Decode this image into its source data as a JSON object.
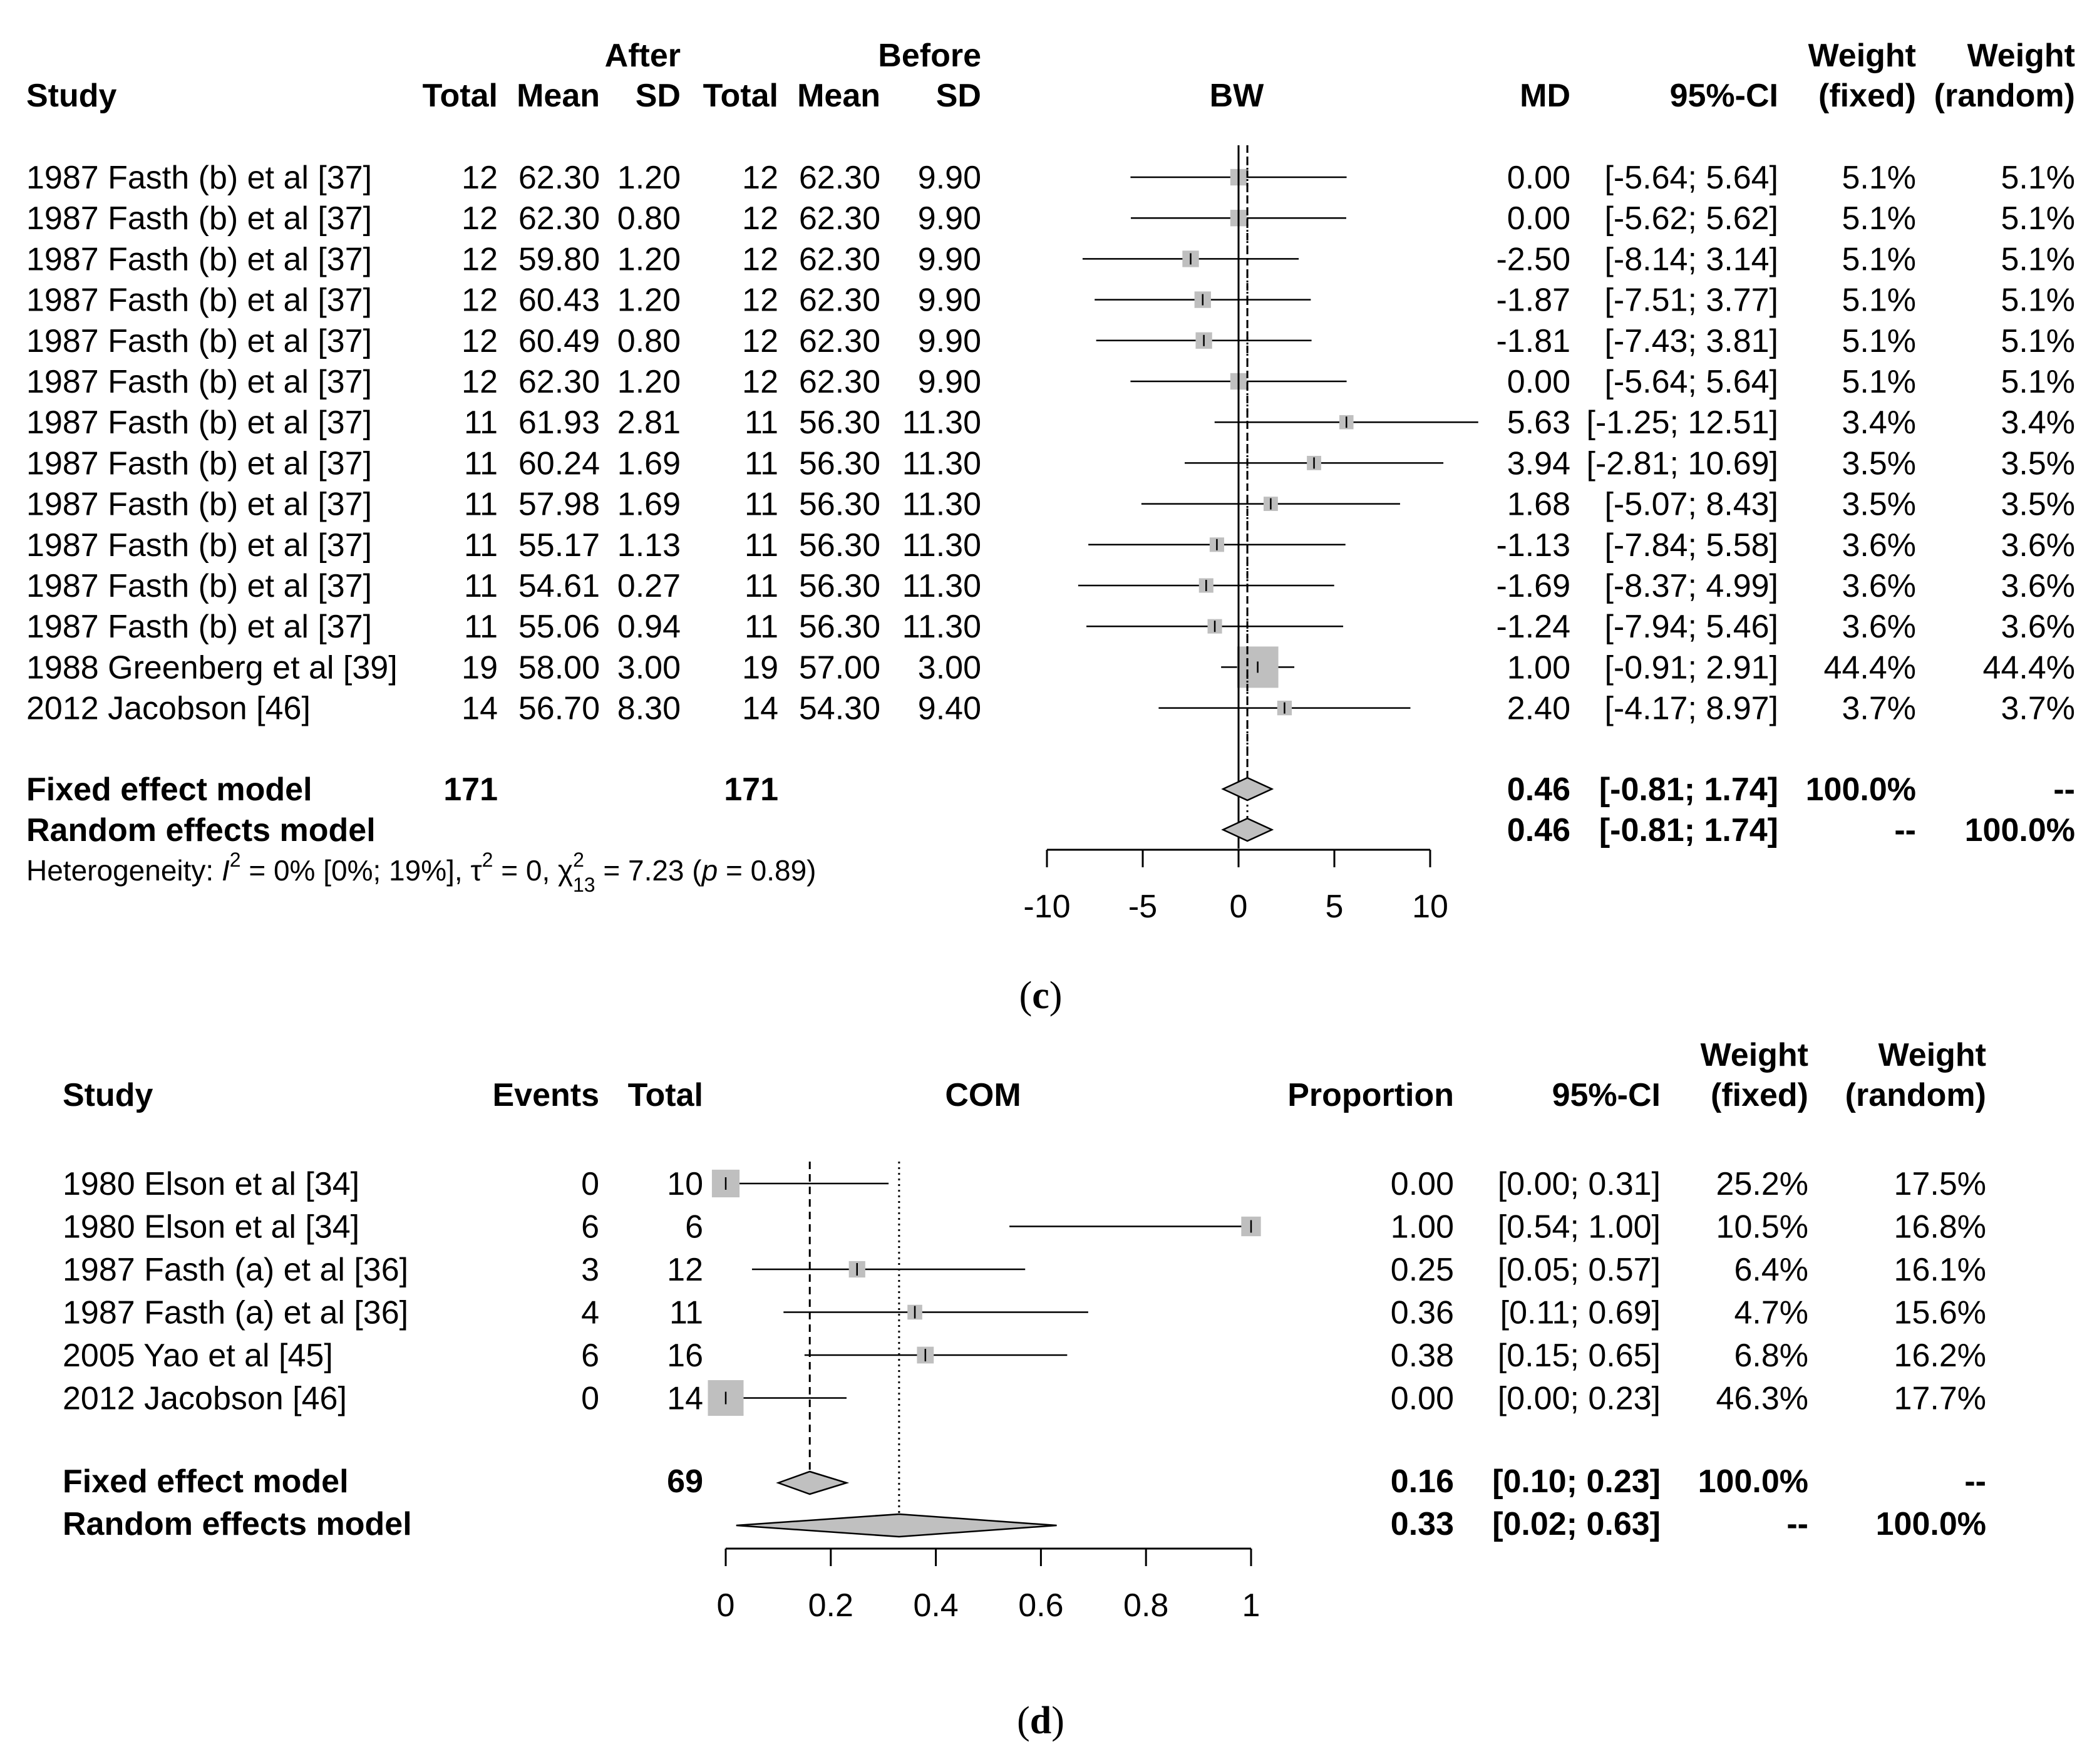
{
  "chart_data": [
    {
      "type": "forest",
      "panel_label": "c",
      "caption": {
        "open": "(",
        "letter": "c",
        "close": ")"
      },
      "measure": "BW",
      "header": {
        "study": "Study",
        "group_after": "After",
        "group_before": "Before",
        "total": "Total",
        "mean": "Mean",
        "sd": "SD",
        "md": "MD",
        "ci": "95%-CI",
        "weight": "Weight",
        "fixed": "(fixed)",
        "random": "(random)"
      },
      "xaxis": {
        "range": [
          -10,
          10
        ],
        "ticks": [
          -10,
          -5,
          0,
          5,
          10
        ],
        "tick_labels": [
          "-10",
          "-5",
          "0",
          "5",
          "10"
        ]
      },
      "studies": [
        {
          "study": "1987 Fasth (b) et al [37]",
          "n_after": "12",
          "mean_after": "62.30",
          "sd_after": "1.20",
          "n_before": "12",
          "mean_before": "62.30",
          "sd_before": "9.90",
          "md": 0.0,
          "lo": -5.64,
          "hi": 5.64,
          "w": 5.1,
          "md_text": "0.00",
          "ci_text": "[-5.64;  5.64]",
          "wf": "5.1%",
          "wr": "5.1%"
        },
        {
          "study": "1987 Fasth (b) et al [37]",
          "n_after": "12",
          "mean_after": "62.30",
          "sd_after": "0.80",
          "n_before": "12",
          "mean_before": "62.30",
          "sd_before": "9.90",
          "md": 0.0,
          "lo": -5.62,
          "hi": 5.62,
          "w": 5.1,
          "md_text": "0.00",
          "ci_text": "[-5.62;  5.62]",
          "wf": "5.1%",
          "wr": "5.1%"
        },
        {
          "study": "1987 Fasth (b) et al [37]",
          "n_after": "12",
          "mean_after": "59.80",
          "sd_after": "1.20",
          "n_before": "12",
          "mean_before": "62.30",
          "sd_before": "9.90",
          "md": -2.5,
          "lo": -8.14,
          "hi": 3.14,
          "w": 5.1,
          "md_text": "-2.50",
          "ci_text": "[-8.14;  3.14]",
          "wf": "5.1%",
          "wr": "5.1%"
        },
        {
          "study": "1987 Fasth (b) et al [37]",
          "n_after": "12",
          "mean_after": "60.43",
          "sd_after": "1.20",
          "n_before": "12",
          "mean_before": "62.30",
          "sd_before": "9.90",
          "md": -1.87,
          "lo": -7.51,
          "hi": 3.77,
          "w": 5.1,
          "md_text": "-1.87",
          "ci_text": "[-7.51;  3.77]",
          "wf": "5.1%",
          "wr": "5.1%"
        },
        {
          "study": "1987 Fasth (b) et al [37]",
          "n_after": "12",
          "mean_after": "60.49",
          "sd_after": "0.80",
          "n_before": "12",
          "mean_before": "62.30",
          "sd_before": "9.90",
          "md": -1.81,
          "lo": -7.43,
          "hi": 3.81,
          "w": 5.1,
          "md_text": "-1.81",
          "ci_text": "[-7.43;  3.81]",
          "wf": "5.1%",
          "wr": "5.1%"
        },
        {
          "study": "1987 Fasth (b) et al [37]",
          "n_after": "12",
          "mean_after": "62.30",
          "sd_after": "1.20",
          "n_before": "12",
          "mean_before": "62.30",
          "sd_before": "9.90",
          "md": 0.0,
          "lo": -5.64,
          "hi": 5.64,
          "w": 5.1,
          "md_text": "0.00",
          "ci_text": "[-5.64;  5.64]",
          "wf": "5.1%",
          "wr": "5.1%"
        },
        {
          "study": "1987 Fasth (b) et al [37]",
          "n_after": "11",
          "mean_after": "61.93",
          "sd_after": "2.81",
          "n_before": "11",
          "mean_before": "56.30",
          "sd_before": "11.30",
          "md": 5.63,
          "lo": -1.25,
          "hi": 12.51,
          "w": 3.4,
          "md_text": "5.63",
          "ci_text": "[-1.25; 12.51]",
          "wf": "3.4%",
          "wr": "3.4%"
        },
        {
          "study": "1987 Fasth (b) et al [37]",
          "n_after": "11",
          "mean_after": "60.24",
          "sd_after": "1.69",
          "n_before": "11",
          "mean_before": "56.30",
          "sd_before": "11.30",
          "md": 3.94,
          "lo": -2.81,
          "hi": 10.69,
          "w": 3.5,
          "md_text": "3.94",
          "ci_text": "[-2.81; 10.69]",
          "wf": "3.5%",
          "wr": "3.5%"
        },
        {
          "study": "1987 Fasth (b) et al [37]",
          "n_after": "11",
          "mean_after": "57.98",
          "sd_after": "1.69",
          "n_before": "11",
          "mean_before": "56.30",
          "sd_before": "11.30",
          "md": 1.68,
          "lo": -5.07,
          "hi": 8.43,
          "w": 3.5,
          "md_text": "1.68",
          "ci_text": "[-5.07;  8.43]",
          "wf": "3.5%",
          "wr": "3.5%"
        },
        {
          "study": "1987 Fasth (b) et al [37]",
          "n_after": "11",
          "mean_after": "55.17",
          "sd_after": "1.13",
          "n_before": "11",
          "mean_before": "56.30",
          "sd_before": "11.30",
          "md": -1.13,
          "lo": -7.84,
          "hi": 5.58,
          "w": 3.6,
          "md_text": "-1.13",
          "ci_text": "[-7.84;  5.58]",
          "wf": "3.6%",
          "wr": "3.6%"
        },
        {
          "study": "1987 Fasth (b) et al [37]",
          "n_after": "11",
          "mean_after": "54.61",
          "sd_after": "0.27",
          "n_before": "11",
          "mean_before": "56.30",
          "sd_before": "11.30",
          "md": -1.69,
          "lo": -8.37,
          "hi": 4.99,
          "w": 3.6,
          "md_text": "-1.69",
          "ci_text": "[-8.37;  4.99]",
          "wf": "3.6%",
          "wr": "3.6%"
        },
        {
          "study": "1987 Fasth (b) et al [37]",
          "n_after": "11",
          "mean_after": "55.06",
          "sd_after": "0.94",
          "n_before": "11",
          "mean_before": "56.30",
          "sd_before": "11.30",
          "md": -1.24,
          "lo": -7.94,
          "hi": 5.46,
          "w": 3.6,
          "md_text": "-1.24",
          "ci_text": "[-7.94;  5.46]",
          "wf": "3.6%",
          "wr": "3.6%"
        },
        {
          "study": "1988 Greenberg et al [39]",
          "n_after": "19",
          "mean_after": "58.00",
          "sd_after": "3.00",
          "n_before": "19",
          "mean_before": "57.00",
          "sd_before": "3.00",
          "md": 1.0,
          "lo": -0.91,
          "hi": 2.91,
          "w": 44.4,
          "md_text": "1.00",
          "ci_text": "[-0.91;  2.91]",
          "wf": "44.4%",
          "wr": "44.4%"
        },
        {
          "study": "2012 Jacobson [46]",
          "n_after": "14",
          "mean_after": "56.70",
          "sd_after": "8.30",
          "n_before": "14",
          "mean_before": "54.30",
          "sd_before": "9.40",
          "md": 2.4,
          "lo": -4.17,
          "hi": 8.97,
          "w": 3.7,
          "md_text": "2.40",
          "ci_text": "[-4.17;  8.97]",
          "wf": "3.7%",
          "wr": "3.7%"
        }
      ],
      "fixed": {
        "label": "Fixed effect model",
        "n_after": "171",
        "n_before": "171",
        "est": 0.46,
        "lo": -0.81,
        "hi": 1.74,
        "md_text": "0.46",
        "ci_text": "[-0.81;  1.74]",
        "wf": "100.0%",
        "wr": "--"
      },
      "random": {
        "label": "Random effects model",
        "est": 0.46,
        "lo": -0.81,
        "hi": 1.74,
        "md_text": "0.46",
        "ci_text": "[-0.81;  1.74]",
        "wf": "--",
        "wr": "100.0%"
      },
      "heterogeneity": {
        "prefix": "Heterogeneity: ",
        "i_symbol": "I",
        "sup2": "2",
        "i2_text": " = 0% [0%; 19%], ",
        "tau_symbol": "τ",
        "tau_text": " = 0, ",
        "chi_symbol": "χ",
        "df": "13",
        "chi_text": " = 7.23 (",
        "p_symbol": "p",
        "p_text": " = 0.89)"
      }
    },
    {
      "type": "forest",
      "panel_label": "d",
      "caption": {
        "open": "(",
        "letter": "d",
        "close": ")"
      },
      "measure": "COM",
      "header": {
        "study": "Study",
        "events": "Events",
        "total": "Total",
        "proportion": "Proportion",
        "ci": "95%-CI",
        "weight": "Weight",
        "fixed": "(fixed)",
        "random": "(random)"
      },
      "xaxis": {
        "range": [
          0,
          1
        ],
        "ticks": [
          0,
          0.2,
          0.4,
          0.6,
          0.8,
          1
        ],
        "tick_labels": [
          "0",
          "0.2",
          "0.4",
          "0.6",
          "0.8",
          "1"
        ]
      },
      "studies": [
        {
          "study": "1980 Elson et al [34]",
          "events": "0",
          "total": "10",
          "p": 0.0,
          "lo": 0.0,
          "hi": 0.31,
          "w": 25.2,
          "p_text": "0.00",
          "ci_text": "[0.00; 0.31]",
          "wf": "25.2%",
          "wr": "17.5%"
        },
        {
          "study": "1980 Elson et al [34]",
          "events": "6",
          "total": "6",
          "p": 1.0,
          "lo": 0.54,
          "hi": 1.0,
          "w": 10.5,
          "p_text": "1.00",
          "ci_text": "[0.54; 1.00]",
          "wf": "10.5%",
          "wr": "16.8%"
        },
        {
          "study": "1987 Fasth (a) et al [36]",
          "events": "3",
          "total": "12",
          "p": 0.25,
          "lo": 0.05,
          "hi": 0.57,
          "w": 6.4,
          "p_text": "0.25",
          "ci_text": "[0.05; 0.57]",
          "wf": "6.4%",
          "wr": "16.1%"
        },
        {
          "study": "1987 Fasth (a) et al [36]",
          "events": "4",
          "total": "11",
          "p": 0.36,
          "lo": 0.11,
          "hi": 0.69,
          "w": 4.7,
          "p_text": "0.36",
          "ci_text": "[0.11; 0.69]",
          "wf": "4.7%",
          "wr": "15.6%"
        },
        {
          "study": "2005 Yao et al [45]",
          "events": "6",
          "total": "16",
          "p": 0.38,
          "lo": 0.15,
          "hi": 0.65,
          "w": 6.8,
          "p_text": "0.38",
          "ci_text": "[0.15; 0.65]",
          "wf": "6.8%",
          "wr": "16.2%"
        },
        {
          "study": "2012 Jacobson [46]",
          "events": "0",
          "total": "14",
          "p": 0.0,
          "lo": 0.0,
          "hi": 0.23,
          "w": 46.3,
          "p_text": "0.00",
          "ci_text": "[0.00; 0.23]",
          "wf": "46.3%",
          "wr": "17.7%"
        }
      ],
      "fixed": {
        "label": "Fixed effect model",
        "total": "69",
        "est": 0.16,
        "lo": 0.1,
        "hi": 0.23,
        "p_text": "0.16",
        "ci_text": "[0.10; 0.23]",
        "wf": "100.0%",
        "wr": "--"
      },
      "random": {
        "label": "Random effects model",
        "est": 0.33,
        "lo": 0.02,
        "hi": 0.63,
        "p_text": "0.33",
        "ci_text": "[0.02; 0.63]",
        "wf": "--",
        "wr": "100.0%"
      }
    }
  ],
  "colors": {
    "box": "#bfbfbf",
    "diamond": "#c0c0c0",
    "line": "#000000"
  }
}
